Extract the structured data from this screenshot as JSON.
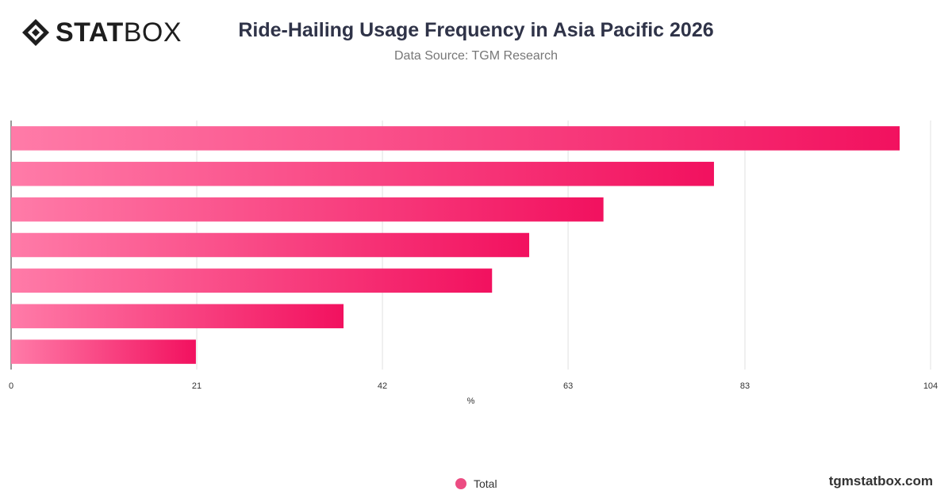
{
  "brand": {
    "logo_bold": "STAT",
    "logo_light": "BOX",
    "website": "tgmstatbox.com"
  },
  "colors": {
    "bar_start": "#ff7ba8",
    "bar_end": "#f2115f",
    "grid": "#e0e0e0",
    "axis": "#333333"
  },
  "chart_data": {
    "type": "bar",
    "orientation": "horizontal",
    "title": "Ride-Hailing Usage Frequency in Asia Pacific 2026",
    "subtitle": "Data Source: TGM Research",
    "xlabel": "%",
    "ylabel": "",
    "xlim": [
      0,
      104
    ],
    "ticks": [
      "0",
      "21",
      "42",
      "63",
      "83",
      "104"
    ],
    "tick_values": [
      0,
      21,
      42,
      63,
      83,
      104
    ],
    "categories": [
      "",
      "",
      "",
      "",
      "",
      "",
      ""
    ],
    "series": [
      {
        "name": "Total",
        "values": [
          100.5,
          79.5,
          67,
          58.6,
          54.4,
          37.6,
          20.9
        ]
      }
    ],
    "grid": true,
    "legend": "bottom-center"
  }
}
